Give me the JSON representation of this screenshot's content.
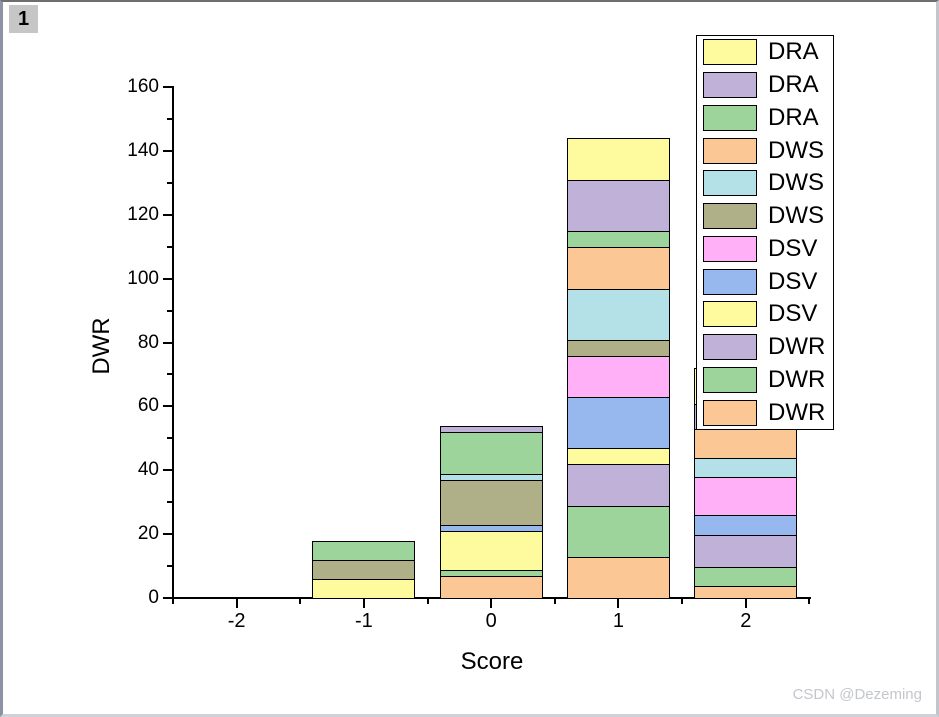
{
  "window": {
    "page_label": "1"
  },
  "watermark": "CSDN @Dezeming",
  "chart_data": {
    "type": "bar",
    "stacked": true,
    "title": "",
    "xlabel": "Score",
    "ylabel": "DWR",
    "grid": false,
    "legend_position": "top-right",
    "legend_note": "legend listed top-to-bottom corresponds to topmost-to-bottommost stack segment",
    "xlim": [
      -2.5,
      2.5
    ],
    "ylim": [
      0,
      160
    ],
    "x_major_ticks": [
      -2,
      -1,
      0,
      1,
      2
    ],
    "x_minor_step": 0.5,
    "y_major_ticks": [
      0,
      20,
      40,
      60,
      80,
      100,
      120,
      140,
      160
    ],
    "y_minor_step": 10,
    "categories": [
      -2,
      -1,
      0,
      1,
      2
    ],
    "series": [
      {
        "name": "DWR",
        "color": "#FBC795",
        "values": [
          0,
          0,
          7,
          13,
          4
        ]
      },
      {
        "name": "DWR",
        "color": "#9CD49C",
        "values": [
          0,
          0,
          2,
          16,
          6
        ]
      },
      {
        "name": "DWR",
        "color": "#C0B1D9",
        "values": [
          0,
          0,
          0,
          13,
          10
        ]
      },
      {
        "name": "DSV",
        "color": "#FDFB9E",
        "values": [
          0,
          6,
          12,
          5,
          0
        ]
      },
      {
        "name": "DSV",
        "color": "#97B8EF",
        "values": [
          0,
          0,
          2,
          16,
          6
        ]
      },
      {
        "name": "DSV",
        "color": "#FFB0F6",
        "values": [
          0,
          0,
          0,
          13,
          12
        ]
      },
      {
        "name": "DWS",
        "color": "#AFB087",
        "values": [
          0,
          6,
          14,
          5,
          0
        ]
      },
      {
        "name": "DWS",
        "color": "#B3E1E7",
        "values": [
          0,
          0,
          2,
          16,
          6
        ]
      },
      {
        "name": "DWS",
        "color": "#FBC795",
        "values": [
          0,
          0,
          0,
          13,
          9
        ]
      },
      {
        "name": "DRA",
        "color": "#9CD49C",
        "values": [
          0,
          6,
          13,
          5,
          0
        ]
      },
      {
        "name": "DRA",
        "color": "#C0B1D9",
        "values": [
          0,
          0,
          2,
          16,
          8
        ]
      },
      {
        "name": "DRA",
        "color": "#FDFB9E",
        "values": [
          0,
          0,
          0,
          13,
          11
        ]
      }
    ]
  }
}
